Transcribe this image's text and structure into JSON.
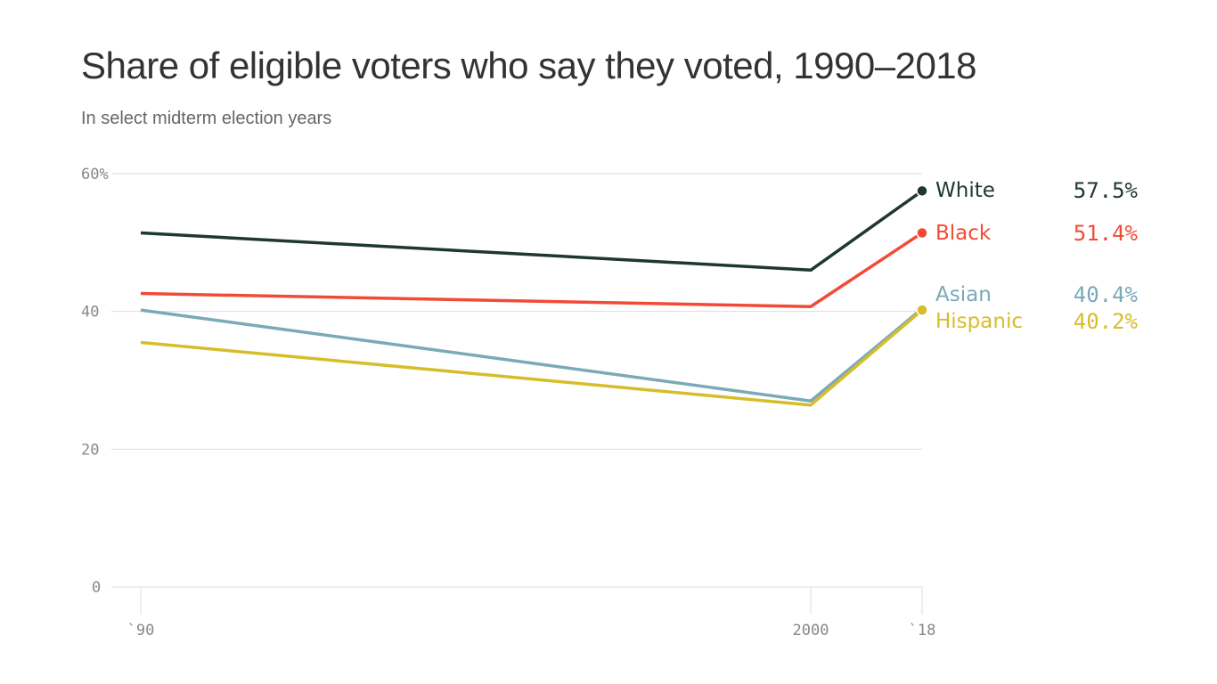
{
  "chart_data": {
    "type": "line",
    "title": "Share of eligible voters who say they voted, 1990–2018",
    "subtitle": "In select midterm election years",
    "categories": [
      "`90",
      "2000",
      "`18"
    ],
    "y_ticks": [
      "0",
      "20",
      "40",
      "60%"
    ],
    "ylim": [
      0,
      60
    ],
    "grid": true,
    "series": [
      {
        "name": "White",
        "values": [
          51.4,
          46.0,
          57.5
        ],
        "end_label": "57.5%",
        "color": "#1f3731"
      },
      {
        "name": "Black",
        "values": [
          42.6,
          40.7,
          51.4
        ],
        "end_label": "51.4%",
        "color": "#f24b35"
      },
      {
        "name": "Asian",
        "values": [
          40.2,
          27.0,
          40.4
        ],
        "end_label": "40.4%",
        "color": "#7aa9b8"
      },
      {
        "name": "Hispanic",
        "values": [
          35.5,
          26.4,
          40.2
        ],
        "end_label": "40.2%",
        "color": "#d7bd29"
      }
    ]
  }
}
